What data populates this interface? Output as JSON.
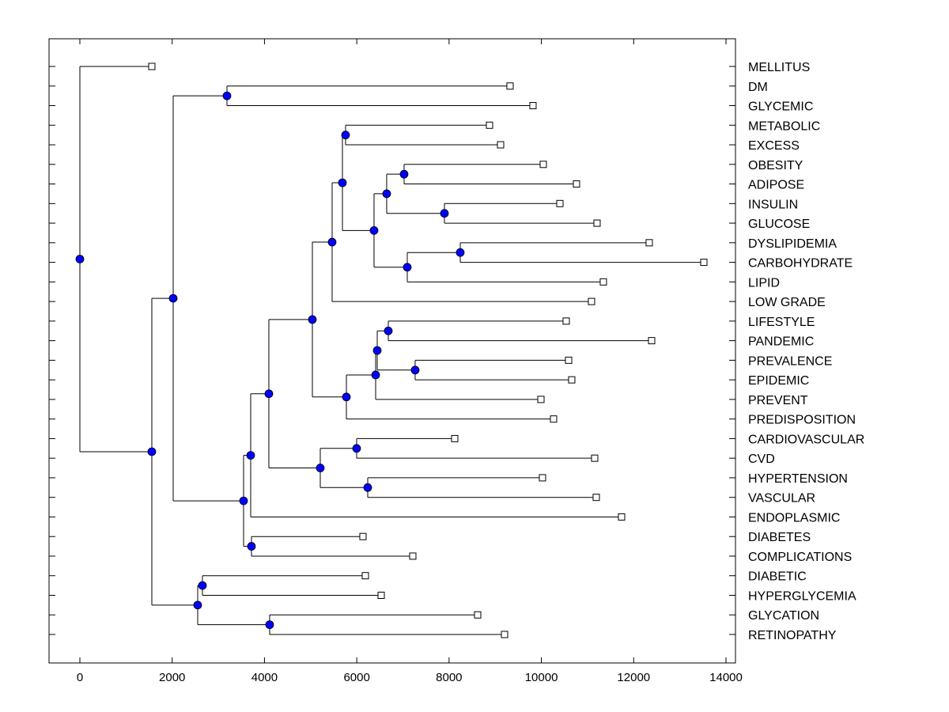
{
  "chart_data": {
    "type": "dendrogram",
    "title": "",
    "xlabel": "",
    "ylabel": "",
    "xlim": [
      -650,
      14200
    ],
    "x_ticks": [
      0,
      2000,
      4000,
      6000,
      8000,
      10000,
      12000,
      14000
    ],
    "x_tick_labels": [
      "0",
      "2000",
      "4000",
      "6000",
      "8000",
      "10000",
      "12000",
      "14000"
    ],
    "grid": false,
    "label_side": "right",
    "node_color": "#0000ff",
    "leaves": [
      {
        "id": "L0",
        "label": "MELLITUS",
        "value": 1559
      },
      {
        "id": "L1",
        "label": "DM",
        "value": 9321
      },
      {
        "id": "L2",
        "label": "GLYCEMIC",
        "value": 9818
      },
      {
        "id": "L3",
        "label": "METABOLIC",
        "value": 8876
      },
      {
        "id": "L4",
        "label": "EXCESS",
        "value": 9116
      },
      {
        "id": "L5",
        "label": "OBESITY",
        "value": 10041
      },
      {
        "id": "L6",
        "label": "ADIPOSE",
        "value": 10761
      },
      {
        "id": "L7",
        "label": "INSULIN",
        "value": 10401
      },
      {
        "id": "L8",
        "label": "GLUCOSE",
        "value": 11206
      },
      {
        "id": "L9",
        "label": "DYSLIPIDEMIA",
        "value": 12337
      },
      {
        "id": "L10",
        "label": "CARBOHYDRATE",
        "value": 13520
      },
      {
        "id": "L11",
        "label": "LIPID",
        "value": 11343
      },
      {
        "id": "L12",
        "label": "LOW GRADE",
        "value": 11086
      },
      {
        "id": "L13",
        "label": "LIFESTYLE",
        "value": 10538
      },
      {
        "id": "L14",
        "label": "PANDEMIC",
        "value": 12389
      },
      {
        "id": "L15",
        "label": "PREVALENCE",
        "value": 10590
      },
      {
        "id": "L16",
        "label": "EPIDEMIC",
        "value": 10658
      },
      {
        "id": "L17",
        "label": "PREVENT",
        "value": 9990
      },
      {
        "id": "L18",
        "label": "PREDISPOSITION",
        "value": 10264
      },
      {
        "id": "L19",
        "label": "CARDIOVASCULAR",
        "value": 8122
      },
      {
        "id": "L20",
        "label": "CVD",
        "value": 11155
      },
      {
        "id": "L21",
        "label": "HYPERTENSION",
        "value": 10024
      },
      {
        "id": "L22",
        "label": "VASCULAR",
        "value": 11189
      },
      {
        "id": "L23",
        "label": "ENDOPLASMIC",
        "value": 11738
      },
      {
        "id": "L24",
        "label": "DIABETES",
        "value": 6134
      },
      {
        "id": "L25",
        "label": "COMPLICATIONS",
        "value": 7214
      },
      {
        "id": "L26",
        "label": "DIABETIC",
        "value": 6186
      },
      {
        "id": "L27",
        "label": "HYPERGLYCEMIA",
        "value": 6529
      },
      {
        "id": "L28",
        "label": "GLYCATION",
        "value": 8619
      },
      {
        "id": "L29",
        "label": "RETINOPATHY",
        "value": 9202
      }
    ],
    "nodes": [
      {
        "id": "N_dm_gly",
        "value": 3187,
        "children": [
          "L1",
          "L2"
        ]
      },
      {
        "id": "N_met_exc",
        "value": 5757,
        "children": [
          "L3",
          "L4"
        ]
      },
      {
        "id": "N_obe_adi",
        "value": 7025,
        "children": [
          "L5",
          "L6"
        ]
      },
      {
        "id": "N_ins_glu",
        "value": 7899,
        "children": [
          "L7",
          "L8"
        ]
      },
      {
        "id": "N_oa_ig",
        "value": 6648,
        "children": [
          "N_obe_adi",
          "N_ins_glu"
        ]
      },
      {
        "id": "N_dys_carb",
        "value": 8242,
        "children": [
          "L9",
          "L10"
        ]
      },
      {
        "id": "N_dc_lip",
        "value": 7094,
        "children": [
          "N_dys_carb",
          "L11"
        ]
      },
      {
        "id": "N_oaig_dcl",
        "value": 6374,
        "children": [
          "N_oa_ig",
          "N_dc_lip"
        ]
      },
      {
        "id": "N_me_rest",
        "value": 5689,
        "children": [
          "N_met_exc",
          "N_oaig_dcl"
        ]
      },
      {
        "id": "N_lowgrade",
        "value": 5466,
        "children": [
          "N_me_rest",
          "L12"
        ]
      },
      {
        "id": "N_life_pan",
        "value": 6683,
        "children": [
          "L13",
          "L14"
        ]
      },
      {
        "id": "N_prev_epi",
        "value": 7265,
        "children": [
          "L15",
          "L16"
        ]
      },
      {
        "id": "N_lp_pe",
        "value": 6443,
        "children": [
          "N_life_pan",
          "N_prev_epi"
        ]
      },
      {
        "id": "N_prevent",
        "value": 6409,
        "children": [
          "N_lp_pe",
          "L17"
        ]
      },
      {
        "id": "N_predisp",
        "value": 5775,
        "children": [
          "N_prevent",
          "L18"
        ]
      },
      {
        "id": "N_upper",
        "value": 5038,
        "children": [
          "N_lowgrade",
          "N_predisp"
        ]
      },
      {
        "id": "N_card_cvd",
        "value": 5997,
        "children": [
          "L19",
          "L20"
        ]
      },
      {
        "id": "N_hyp_vas",
        "value": 6237,
        "children": [
          "L21",
          "L22"
        ]
      },
      {
        "id": "N_cv_group",
        "value": 5209,
        "children": [
          "N_card_cvd",
          "N_hyp_vas"
        ]
      },
      {
        "id": "N_mid",
        "value": 4095,
        "children": [
          "N_upper",
          "N_cv_group"
        ]
      },
      {
        "id": "N_endo",
        "value": 3701,
        "children": [
          "N_mid",
          "L23"
        ]
      },
      {
        "id": "N_dia_comp",
        "value": 3718,
        "children": [
          "L24",
          "L25"
        ]
      },
      {
        "id": "N_big",
        "value": 3547,
        "children": [
          "N_endo",
          "N_dia_comp"
        ]
      },
      {
        "id": "N_dmg_big",
        "value": 2022,
        "children": [
          "N_dm_gly",
          "N_big"
        ]
      },
      {
        "id": "N_diab_hyper",
        "value": 2656,
        "children": [
          "L26",
          "L27"
        ]
      },
      {
        "id": "N_glyc_ret",
        "value": 4112,
        "children": [
          "L28",
          "L29"
        ]
      },
      {
        "id": "N_low",
        "value": 2553,
        "children": [
          "N_diab_hyper",
          "N_glyc_ret"
        ]
      },
      {
        "id": "N_main",
        "value": 1559,
        "children": [
          "N_dmg_big",
          "N_low"
        ]
      },
      {
        "id": "N_root",
        "value": 0,
        "children": [
          "L0",
          "N_main"
        ]
      }
    ]
  }
}
